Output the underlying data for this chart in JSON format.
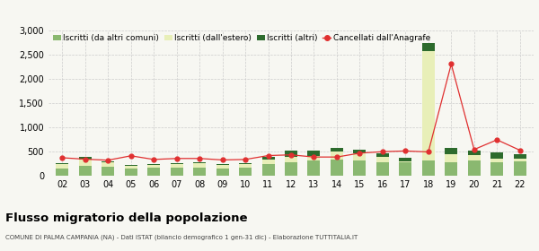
{
  "years": [
    "02",
    "03",
    "04",
    "05",
    "06",
    "07",
    "08",
    "09",
    "10",
    "11",
    "12",
    "13",
    "14",
    "15",
    "16",
    "17",
    "18",
    "19",
    "20",
    "21",
    "22"
  ],
  "iscritti_altri_comuni": [
    150,
    210,
    190,
    145,
    160,
    170,
    175,
    155,
    165,
    235,
    270,
    310,
    340,
    320,
    275,
    275,
    320,
    280,
    310,
    270,
    300
  ],
  "iscritti_estero": [
    90,
    120,
    90,
    55,
    70,
    70,
    80,
    65,
    75,
    90,
    120,
    100,
    160,
    140,
    110,
    20,
    2240,
    170,
    120,
    90,
    60
  ],
  "iscritti_altri": [
    25,
    55,
    15,
    15,
    15,
    15,
    25,
    15,
    15,
    55,
    125,
    115,
    75,
    75,
    75,
    75,
    165,
    115,
    85,
    125,
    75
  ],
  "cancellati": [
    370,
    340,
    320,
    410,
    335,
    355,
    355,
    325,
    335,
    415,
    430,
    385,
    385,
    465,
    495,
    510,
    490,
    2300,
    540,
    740,
    525
  ],
  "color_altri_comuni": "#8ab870",
  "color_estero": "#e8efb8",
  "color_altri": "#2d6b2d",
  "color_cancellati": "#e03030",
  "title": "Flusso migratorio della popolazione",
  "subtitle": "COMUNE DI PALMA CAMPANIA (NA) - Dati ISTAT (bilancio demografico 1 gen-31 dic) - Elaborazione TUTTITALIA.IT",
  "legend_labels": [
    "Iscritti (da altri comuni)",
    "Iscritti (dall'estero)",
    "Iscritti (altri)",
    "Cancellati dall'Anagrafe"
  ],
  "ylim": [
    0,
    3000
  ],
  "yticks": [
    0,
    500,
    1000,
    1500,
    2000,
    2500,
    3000
  ],
  "background_color": "#f7f7f2",
  "grid_color": "#cccccc"
}
